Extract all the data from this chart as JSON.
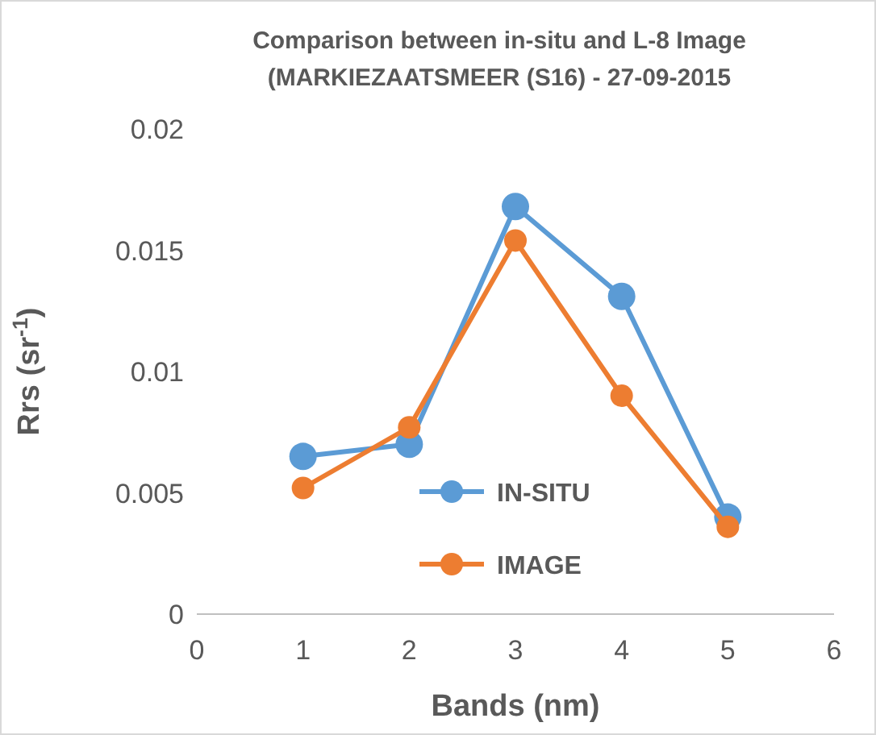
{
  "chart_data": {
    "type": "line",
    "title": "Comparison between in-situ and L-8 Image\n(MARKIEZAATSMEER (S16) - 27-09-2015",
    "xlabel": "Bands (nm)",
    "ylabel": "Rrs (sr$^{-1}$)",
    "x": [
      1,
      2,
      3,
      4,
      5
    ],
    "series": [
      {
        "name": "IN-SITU",
        "color": "#5b9bd5",
        "values": [
          0.0065,
          0.007,
          0.0168,
          0.0131,
          0.004
        ]
      },
      {
        "name": "IMAGE",
        "color": "#ed7d31",
        "values": [
          0.0052,
          0.0077,
          0.0154,
          0.009,
          0.0036
        ]
      }
    ],
    "xlim": [
      0,
      6
    ],
    "xticks": [
      0,
      1,
      2,
      3,
      4,
      5,
      6
    ],
    "ylim": [
      0,
      0.02
    ],
    "yticks": [
      0,
      0.005,
      0.01,
      0.015,
      0.02
    ],
    "grid": false,
    "legend": "bottom",
    "marker": "circle",
    "line_style": "solid"
  }
}
